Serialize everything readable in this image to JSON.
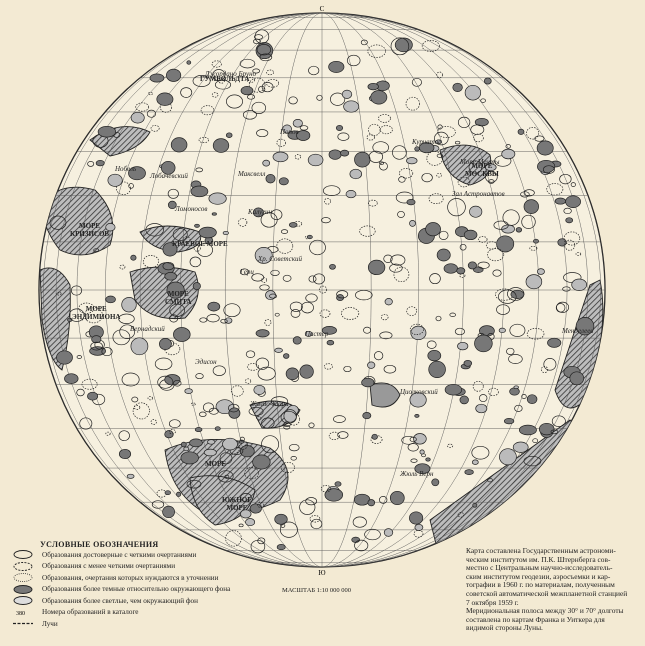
{
  "map": {
    "north_label": "С",
    "south_label": "Ю",
    "scale_label": "МАСШТАБ 1:10 000 000",
    "features": [
      {
        "id": "crisium",
        "lines": [
          "МОРЕ",
          "КРИЗИСОВ"
        ]
      },
      {
        "id": "moskva",
        "lines": [
          "МОРЕ",
          "МОСКВЫ"
        ]
      },
      {
        "id": "smith",
        "lines": [
          "МОРЕ",
          "СМИТА"
        ]
      },
      {
        "id": "kraevoe",
        "lines": [
          "КРАЕВОЕ МОРЕ"
        ]
      },
      {
        "id": "yuzhnoe",
        "lines": [
          "ЮЖНОЕ",
          "МОРЕ"
        ]
      },
      {
        "id": "more_sw",
        "lines": [
          "МОРЕ"
        ]
      },
      {
        "id": "kurchatov",
        "lines": [
          "Курчатов"
        ]
      },
      {
        "id": "tsiolkovsky",
        "lines": [
          "Циолковский"
        ]
      },
      {
        "id": "mendeleev",
        "lines": [
          "Менделеев"
        ]
      },
      {
        "id": "vernadsky",
        "lines": [
          "Вернадский"
        ]
      },
      {
        "id": "lomonosov",
        "lines": [
          "Ломоносов"
        ]
      },
      {
        "id": "joliot",
        "lines": [
          "Жолио-Кюри"
        ]
      },
      {
        "id": "pasteur",
        "lines": [
          "Пастер"
        ]
      },
      {
        "id": "giordano",
        "lines": [
          "Джордано Бруно"
        ]
      },
      {
        "id": "edison",
        "lines": [
          "Эдисон"
        ]
      },
      {
        "id": "hertz",
        "lines": [
          "Герц"
        ]
      },
      {
        "id": "maxwell",
        "lines": [
          "Максвелл"
        ]
      },
      {
        "id": "popov",
        "lines": [
          "Попов"
        ]
      },
      {
        "id": "lobachevsky",
        "lines": [
          "Лобачевский"
        ]
      },
      {
        "id": "nobel",
        "lines": [
          "Нобель"
        ]
      },
      {
        "id": "jules_verne",
        "lines": [
          "Жюль Верн"
        ]
      },
      {
        "id": "sea_astronauts",
        "lines": [
          "Зал Астронавтов"
        ]
      },
      {
        "id": "mechta",
        "lines": [
          "Море Мечты"
        ]
      },
      {
        "id": "sovetsky",
        "lines": [
          "Хр. Советский"
        ]
      },
      {
        "id": "kalugina",
        "lines": [
          "Калугин"
        ]
      },
      {
        "id": "humboldt",
        "lines": [
          "ГУМБОЛЬДТА"
        ]
      },
      {
        "id": "sea_west",
        "lines": [
          "МОРЕ",
          "ЭНДИМИОНА"
        ]
      }
    ]
  },
  "legend": {
    "title": "УСЛОВНЫЕ ОБОЗНАЧЕНИЯ",
    "items": [
      {
        "symbol": "solid-outline",
        "text": "Образования достоверные с четкими очертаниями"
      },
      {
        "symbol": "dashed-outline",
        "text": "Образования с менее четкими очертаниями"
      },
      {
        "symbol": "dotted-outline",
        "text": "Образования, очертания которых нуждаются в уточнении"
      },
      {
        "symbol": "dark-fill",
        "text": "Образования более темные относительно окружающего фона"
      },
      {
        "symbol": "light-fill",
        "text": "Образования более светлые, чем окружающий фон"
      },
      {
        "symbol": "catalog-number",
        "text": "Номера образований в каталоге",
        "number": "380"
      },
      {
        "symbol": "rays",
        "text": "Лучи"
      }
    ]
  },
  "credits": {
    "lines": [
      "Карта составлена Государственным астрономи-",
      "ческим институтом им. П.К. Штернберга сов-",
      "местно с Центральным научно-исследователь-",
      "ским институтом геодезии, аэросъемки и кар-",
      "тографии в 1960 г. по материалам, полученным",
      "советской автоматической межпланетной станцией",
      "7 октября 1959 г.",
      "Меридиональная полоса между 30° и 70° долготы",
      "составлена по картам Франка и Уиткера для",
      "видимой стороны Луны."
    ]
  },
  "colors": {
    "paper": "#f3ead3",
    "ink": "#222222",
    "dark_area": "#8a8a8a",
    "light_area": "#d8d8d8"
  }
}
